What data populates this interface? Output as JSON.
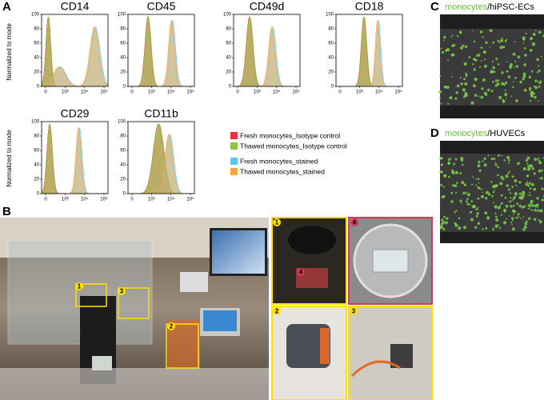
{
  "panel_labels": [
    "A",
    "B",
    "C",
    "D"
  ],
  "histograms": {
    "y_axis_label": "Normalized to mode",
    "yticks": [
      0,
      20,
      40,
      60,
      80,
      100
    ],
    "xticks": [
      "0",
      "10³",
      "10⁴",
      "10⁵"
    ],
    "plots": [
      {
        "title": "CD14"
      },
      {
        "title": "CD45"
      },
      {
        "title": "CD49d"
      },
      {
        "title": "CD18"
      },
      {
        "title": "CD29"
      },
      {
        "title": "CD11b"
      }
    ]
  },
  "legend": [
    {
      "name": "Fresh monocytes_Isotype control",
      "color": "#e8323c"
    },
    {
      "name": "Thawed monocytes_Isotype control",
      "color": "#8cc63f"
    },
    {
      "name": "Fresh monocytes_stained",
      "color": "#5bc8f0"
    },
    {
      "name": "Thawed monocytes_stained",
      "color": "#f7a541"
    }
  ],
  "microscopy": [
    {
      "stain": "monocytes",
      "cells": "/hiPSC-ECs"
    },
    {
      "stain": "monocytes",
      "cells": "/HUVECs"
    }
  ],
  "setup_photo": {
    "callouts": [
      1,
      2,
      3,
      4
    ]
  }
}
